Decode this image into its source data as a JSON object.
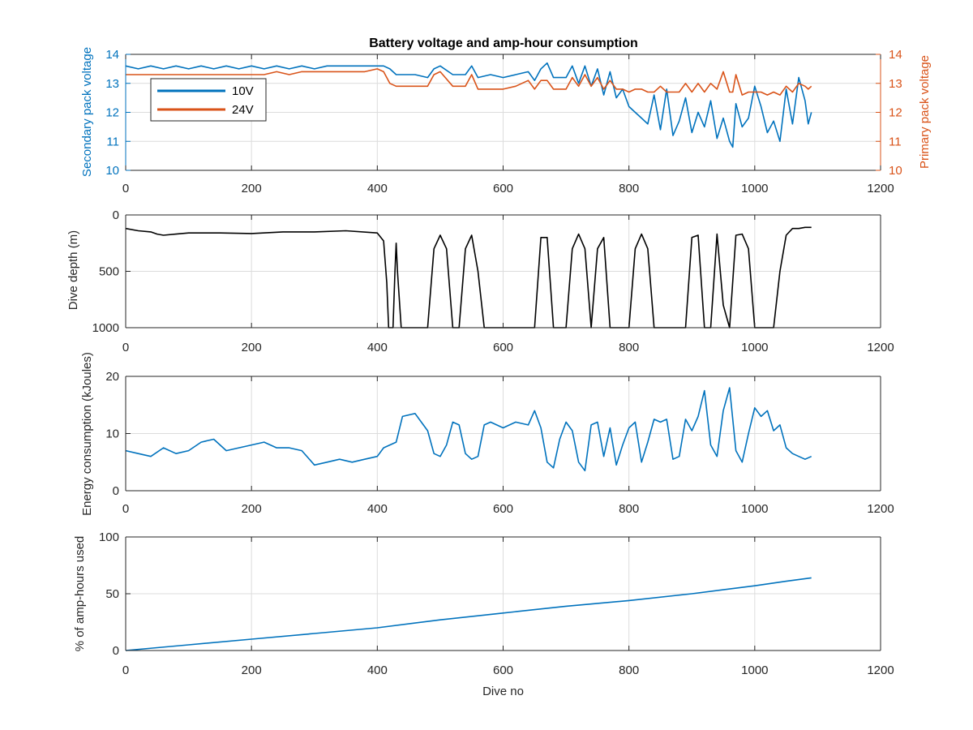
{
  "figure": {
    "title": "Battery voltage and amp-hour consumption",
    "colors": {
      "blue": "#0072bd",
      "orange": "#d95319",
      "black": "#000000",
      "axis": "#262626",
      "grid": "#dcdcdc"
    }
  },
  "chart_data": [
    {
      "type": "line",
      "title": "Battery voltage and amp-hour consumption",
      "xlabel": "",
      "ylabel": "Secondary pack voltage",
      "y2label": "Primary pack voltage",
      "xlim": [
        0,
        1200
      ],
      "ylim": [
        10,
        14
      ],
      "y2lim": [
        10,
        14
      ],
      "xticks": [
        "0",
        "200",
        "400",
        "600",
        "800",
        "1000",
        "1200"
      ],
      "yticks": [
        "10",
        "11",
        "12",
        "13",
        "14"
      ],
      "y2ticks": [
        "10",
        "11",
        "12",
        "13",
        "14"
      ],
      "grid": true,
      "legend": {
        "position": "top-left",
        "entries": [
          "10V",
          "24V"
        ]
      },
      "series": [
        {
          "name": "10V",
          "axis": "left",
          "color": "#0072bd",
          "x": [
            0,
            20,
            40,
            60,
            80,
            100,
            120,
            140,
            160,
            180,
            200,
            220,
            240,
            260,
            280,
            300,
            320,
            340,
            360,
            380,
            400,
            410,
            420,
            430,
            440,
            460,
            480,
            490,
            500,
            520,
            540,
            550,
            560,
            580,
            600,
            620,
            640,
            650,
            660,
            670,
            680,
            700,
            710,
            720,
            730,
            740,
            750,
            760,
            770,
            780,
            790,
            800,
            810,
            820,
            830,
            840,
            850,
            860,
            870,
            880,
            890,
            900,
            910,
            920,
            930,
            940,
            950,
            960,
            965,
            970,
            980,
            990,
            1000,
            1010,
            1020,
            1030,
            1040,
            1050,
            1060,
            1070,
            1080,
            1085,
            1090
          ],
          "values": [
            13.6,
            13.5,
            13.6,
            13.5,
            13.6,
            13.5,
            13.6,
            13.5,
            13.6,
            13.5,
            13.6,
            13.5,
            13.6,
            13.5,
            13.6,
            13.5,
            13.6,
            13.6,
            13.6,
            13.6,
            13.6,
            13.6,
            13.5,
            13.3,
            13.3,
            13.3,
            13.2,
            13.5,
            13.6,
            13.3,
            13.3,
            13.6,
            13.2,
            13.3,
            13.2,
            13.3,
            13.4,
            13.1,
            13.5,
            13.7,
            13.2,
            13.2,
            13.6,
            13.0,
            13.6,
            12.9,
            13.5,
            12.6,
            13.4,
            12.5,
            12.8,
            12.2,
            12.0,
            11.8,
            11.6,
            12.6,
            11.4,
            12.8,
            11.2,
            11.7,
            12.5,
            11.3,
            12.0,
            11.5,
            12.4,
            11.1,
            11.8,
            11.0,
            10.8,
            12.3,
            11.5,
            11.8,
            12.9,
            12.2,
            11.3,
            11.7,
            11.0,
            12.8,
            11.6,
            13.2,
            12.4,
            11.6,
            12.0
          ]
        },
        {
          "name": "24V",
          "axis": "right",
          "color": "#d95319",
          "x": [
            0,
            20,
            40,
            60,
            80,
            100,
            120,
            140,
            160,
            180,
            200,
            220,
            240,
            260,
            280,
            300,
            320,
            340,
            360,
            380,
            400,
            410,
            420,
            430,
            440,
            460,
            480,
            490,
            500,
            520,
            540,
            550,
            560,
            580,
            600,
            620,
            640,
            650,
            660,
            670,
            680,
            700,
            710,
            720,
            730,
            740,
            750,
            760,
            770,
            780,
            790,
            800,
            810,
            820,
            830,
            840,
            850,
            860,
            870,
            880,
            890,
            900,
            910,
            920,
            930,
            940,
            950,
            960,
            965,
            970,
            980,
            990,
            1000,
            1010,
            1020,
            1030,
            1040,
            1050,
            1060,
            1070,
            1080,
            1085,
            1090
          ],
          "values": [
            13.3,
            13.3,
            13.3,
            13.3,
            13.3,
            13.3,
            13.3,
            13.3,
            13.3,
            13.3,
            13.3,
            13.3,
            13.4,
            13.3,
            13.4,
            13.4,
            13.4,
            13.4,
            13.4,
            13.4,
            13.5,
            13.4,
            13.0,
            12.9,
            12.9,
            12.9,
            12.9,
            13.3,
            13.4,
            12.9,
            12.9,
            13.3,
            12.8,
            12.8,
            12.8,
            12.9,
            13.1,
            12.8,
            13.1,
            13.1,
            12.8,
            12.8,
            13.2,
            12.9,
            13.3,
            12.9,
            13.2,
            12.8,
            13.1,
            12.8,
            12.8,
            12.7,
            12.8,
            12.8,
            12.7,
            12.7,
            12.9,
            12.7,
            12.7,
            12.7,
            13.0,
            12.7,
            13.0,
            12.7,
            13.0,
            12.8,
            13.4,
            12.7,
            12.7,
            13.3,
            12.6,
            12.7,
            12.7,
            12.7,
            12.6,
            12.7,
            12.6,
            12.9,
            12.7,
            13.0,
            12.9,
            12.8,
            12.9
          ]
        }
      ]
    },
    {
      "type": "line",
      "title": "",
      "xlabel": "",
      "ylabel": "Dive depth (m)",
      "xlim": [
        0,
        1200
      ],
      "ylim": [
        0,
        1000
      ],
      "y_reversed": true,
      "xticks": [
        "0",
        "200",
        "400",
        "600",
        "800",
        "1000",
        "1200"
      ],
      "yticks": [
        "0",
        "500",
        "1000"
      ],
      "grid": true,
      "series": [
        {
          "color": "#000000",
          "x": [
            0,
            20,
            40,
            50,
            60,
            80,
            100,
            150,
            200,
            250,
            300,
            350,
            400,
            410,
            415,
            418,
            420,
            425,
            428,
            430,
            432,
            438,
            450,
            470,
            480,
            490,
            500,
            510,
            520,
            530,
            540,
            550,
            560,
            570,
            580,
            600,
            620,
            640,
            650,
            660,
            670,
            680,
            690,
            700,
            710,
            720,
            730,
            740,
            750,
            760,
            770,
            780,
            790,
            800,
            810,
            820,
            830,
            840,
            850,
            860,
            870,
            880,
            890,
            900,
            910,
            920,
            930,
            940,
            950,
            960,
            970,
            980,
            990,
            1000,
            1010,
            1020,
            1030,
            1040,
            1050,
            1060,
            1070,
            1080,
            1090
          ],
          "values": [
            120,
            140,
            150,
            170,
            180,
            170,
            160,
            160,
            165,
            150,
            150,
            140,
            160,
            230,
            600,
            1000,
            1000,
            1000,
            500,
            250,
            500,
            1000,
            1000,
            1000,
            1000,
            300,
            180,
            300,
            1000,
            1000,
            300,
            180,
            500,
            1000,
            1000,
            1000,
            1000,
            1000,
            1000,
            200,
            200,
            1000,
            1000,
            1000,
            300,
            170,
            300,
            1000,
            300,
            200,
            1000,
            1000,
            1000,
            1000,
            300,
            170,
            300,
            1000,
            1000,
            1000,
            1000,
            1000,
            1000,
            200,
            180,
            1000,
            1000,
            170,
            800,
            1000,
            180,
            170,
            300,
            1000,
            1000,
            1000,
            1000,
            500,
            180,
            120,
            120,
            110,
            110
          ]
        }
      ]
    },
    {
      "type": "line",
      "title": "",
      "xlabel": "",
      "ylabel": "Energy consumption (kJoules)",
      "xlim": [
        0,
        1200
      ],
      "ylim": [
        0,
        20
      ],
      "xticks": [
        "0",
        "200",
        "400",
        "600",
        "800",
        "1000",
        "1200"
      ],
      "yticks": [
        "0",
        "10",
        "20"
      ],
      "grid": true,
      "series": [
        {
          "color": "#0072bd",
          "x": [
            0,
            20,
            40,
            60,
            80,
            100,
            120,
            140,
            160,
            180,
            200,
            220,
            240,
            260,
            280,
            300,
            320,
            340,
            360,
            380,
            400,
            410,
            420,
            430,
            440,
            460,
            470,
            480,
            490,
            500,
            510,
            520,
            530,
            540,
            550,
            560,
            570,
            580,
            600,
            620,
            640,
            650,
            660,
            670,
            680,
            690,
            700,
            710,
            720,
            730,
            740,
            750,
            760,
            770,
            780,
            790,
            800,
            810,
            820,
            830,
            840,
            850,
            860,
            870,
            880,
            890,
            900,
            910,
            920,
            930,
            940,
            950,
            960,
            970,
            980,
            990,
            1000,
            1010,
            1020,
            1030,
            1040,
            1050,
            1060,
            1070,
            1080,
            1090
          ],
          "values": [
            7.0,
            6.5,
            6.0,
            7.5,
            6.5,
            7.0,
            8.5,
            9.0,
            7.0,
            7.5,
            8.0,
            8.5,
            7.5,
            7.5,
            7.0,
            4.5,
            5.0,
            5.5,
            5.0,
            5.5,
            6.0,
            7.5,
            8.0,
            8.5,
            13.0,
            13.5,
            12.0,
            10.5,
            6.5,
            6.0,
            8.0,
            12.0,
            11.5,
            6.5,
            5.5,
            6.0,
            11.5,
            12.0,
            11.0,
            12.0,
            11.5,
            14.0,
            11.0,
            5.0,
            4.0,
            9.0,
            12.0,
            10.5,
            5.0,
            3.5,
            11.5,
            12.0,
            6.0,
            11.0,
            4.5,
            8.0,
            11.0,
            12.0,
            5.0,
            8.5,
            12.5,
            12.0,
            12.5,
            5.5,
            6.0,
            12.5,
            10.5,
            13.0,
            17.5,
            8.0,
            6.0,
            14.0,
            18.0,
            7.0,
            5.0,
            10.0,
            14.5,
            13.0,
            14.0,
            10.5,
            11.5,
            7.5,
            6.5,
            6.0,
            5.5,
            6.0
          ]
        }
      ]
    },
    {
      "type": "line",
      "title": "",
      "xlabel": "Dive no",
      "ylabel": "% of amp-hours used",
      "xlim": [
        0,
        1200
      ],
      "ylim": [
        0,
        100
      ],
      "xticks": [
        "0",
        "200",
        "400",
        "600",
        "800",
        "1000",
        "1200"
      ],
      "yticks": [
        "0",
        "50",
        "100"
      ],
      "grid": true,
      "series": [
        {
          "color": "#0072bd",
          "x": [
            0,
            100,
            200,
            300,
            400,
            500,
            600,
            700,
            800,
            900,
            1000,
            1050,
            1090
          ],
          "values": [
            0,
            5,
            10,
            15,
            20,
            27,
            33,
            39,
            44,
            50,
            57,
            61,
            64
          ]
        }
      ]
    }
  ]
}
